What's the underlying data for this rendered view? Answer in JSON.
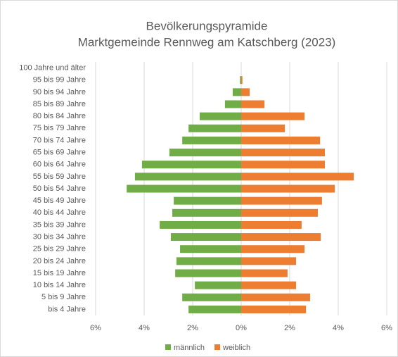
{
  "chart_data": {
    "type": "bar",
    "orientation": "horizontal",
    "stacked": "diverging",
    "title": "Bevölkerungspyramide",
    "subtitle": "Marktgemeinde Rennweg am Katschberg (2023)",
    "categories": [
      "100 Jahre und älter",
      "95 bis 99 Jahre",
      "90 bis 94 Jahre",
      "85 bis 89 Jahre",
      "80 bis 84 Jahre",
      "75 bis 79 Jahre",
      "70 bis 74 Jahre",
      "65 bis 69 Jahre",
      "60 bis 64 Jahre",
      "55 bis 59 Jahre",
      "50 bis 54 Jahre",
      "45 bis 49 Jahre",
      "40 bis 44 Jahre",
      "35 bis 39 Jahre",
      "30 bis 34 Jahre",
      "25 bis 29 Jahre",
      "20 bis 24 Jahre",
      "15 bis 19 Jahre",
      "10 bis 14 Jahre",
      "5 bis 9 Jahre",
      "bis 4 Jahre"
    ],
    "series": [
      {
        "name": "männlich",
        "color": "#70ad47",
        "values": [
          0,
          -0.05,
          -0.35,
          -0.67,
          -1.71,
          -2.17,
          -2.43,
          -2.96,
          -4.09,
          -4.38,
          -4.72,
          -2.78,
          -2.84,
          -3.36,
          -2.9,
          -2.52,
          -2.67,
          -2.72,
          -1.91,
          -2.43,
          -2.17
        ]
      },
      {
        "name": "weiblich",
        "color": "#ed7d31",
        "values": [
          0,
          0.05,
          0.35,
          0.96,
          2.61,
          1.8,
          3.25,
          3.45,
          3.45,
          4.64,
          3.86,
          3.33,
          3.16,
          2.49,
          3.28,
          2.61,
          2.26,
          1.91,
          2.26,
          2.84,
          2.67
        ]
      }
    ],
    "xlim": [
      -6,
      6
    ],
    "xticks": [
      {
        "value": -6,
        "label": "6%"
      },
      {
        "value": -4,
        "label": "4%"
      },
      {
        "value": -2,
        "label": "2%"
      },
      {
        "value": 0,
        "label": "0%"
      },
      {
        "value": 2,
        "label": "2%"
      },
      {
        "value": 4,
        "label": "4%"
      },
      {
        "value": 6,
        "label": "6%"
      }
    ],
    "grid": true,
    "legend": "bottom"
  }
}
